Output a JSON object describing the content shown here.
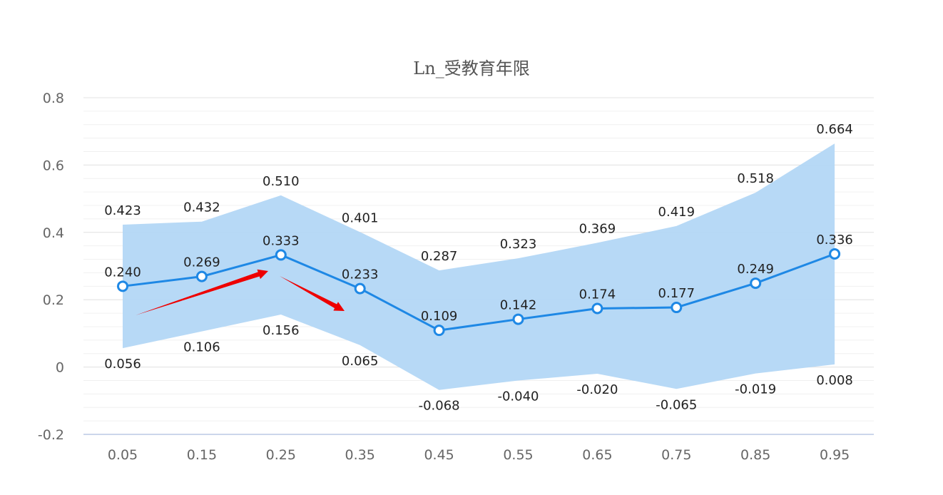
{
  "chart_data": {
    "type": "line",
    "title": "Ln_受教育年限",
    "xlabel": "",
    "ylabel": "",
    "categories": [
      "0.05",
      "0.15",
      "0.25",
      "0.35",
      "0.45",
      "0.55",
      "0.65",
      "0.75",
      "0.85",
      "0.95"
    ],
    "ylim": [
      -0.2,
      0.8
    ],
    "yticks": [
      "-0.2",
      "0",
      "0.2",
      "0.4",
      "0.6",
      "0.8"
    ],
    "series": [
      {
        "role": "estimate",
        "values": [
          0.24,
          0.269,
          0.333,
          0.233,
          0.109,
          0.142,
          0.174,
          0.177,
          0.249,
          0.336
        ],
        "labels": [
          "0.240",
          "0.269",
          "0.333",
          "0.233",
          "0.109",
          "0.142",
          "0.174",
          "0.177",
          "0.249",
          "0.336"
        ],
        "color": "#1e88e5"
      },
      {
        "role": "upper-bound",
        "values": [
          0.423,
          0.432,
          0.51,
          0.401,
          0.287,
          0.323,
          0.369,
          0.419,
          0.518,
          0.664
        ],
        "labels": [
          "0.423",
          "0.432",
          "0.510",
          "0.401",
          "0.287",
          "0.323",
          "0.369",
          "0.419",
          "0.518",
          "0.664"
        ]
      },
      {
        "role": "lower-bound",
        "values": [
          0.056,
          0.106,
          0.156,
          0.065,
          -0.068,
          -0.04,
          -0.02,
          -0.065,
          -0.019,
          0.008
        ],
        "labels": [
          "0.056",
          "0.106",
          "0.156",
          "0.065",
          "-0.068",
          "-0.040",
          "-0.020",
          "-0.065",
          "-0.019",
          "0.008"
        ]
      }
    ],
    "band_color": "#b3d7f5",
    "annotation_color": "#ee0000",
    "grid": true,
    "legend": "none"
  }
}
